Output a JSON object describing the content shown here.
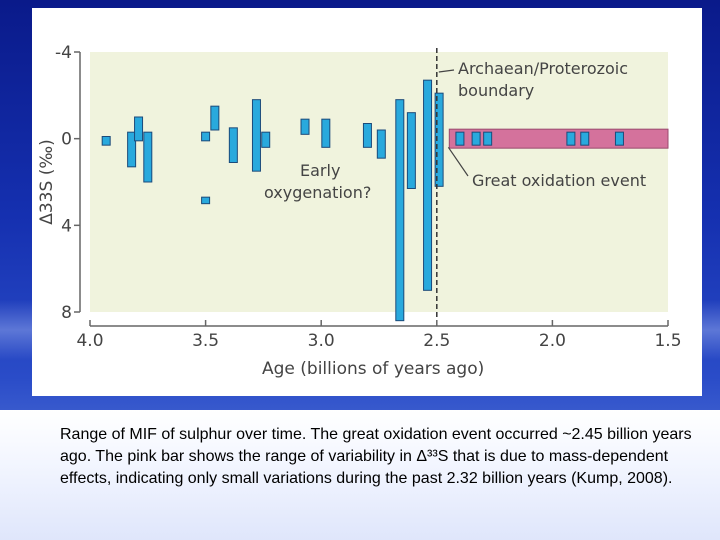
{
  "chart_data": {
    "type": "bar",
    "xlabel": "Age (billions of years ago)",
    "ylabel": "Δ33S (‰)",
    "xlim": [
      4.0,
      1.5
    ],
    "ylim": [
      -4,
      8
    ],
    "x_ticks": [
      "4.0",
      "3.5",
      "3.0",
      "2.5",
      "2.0",
      "1.5"
    ],
    "y_ticks": [
      "-4",
      "0",
      "4",
      "8"
    ],
    "grid": false,
    "ranges": [
      {
        "age": 3.93,
        "min": -0.1,
        "max": 0.3
      },
      {
        "age": 3.82,
        "min": -0.3,
        "max": 1.3
      },
      {
        "age": 3.79,
        "min": -1.0,
        "max": 0.1
      },
      {
        "age": 3.75,
        "min": -0.3,
        "max": 2.0
      },
      {
        "age": 3.5,
        "min": -0.3,
        "max": 0.1
      },
      {
        "age": 3.5,
        "min": 2.7,
        "max": 3.0
      },
      {
        "age": 3.46,
        "min": -1.5,
        "max": -0.4
      },
      {
        "age": 3.38,
        "min": -0.5,
        "max": 1.1
      },
      {
        "age": 3.28,
        "min": -1.8,
        "max": 1.5
      },
      {
        "age": 3.24,
        "min": -0.3,
        "max": 0.4
      },
      {
        "age": 3.07,
        "min": -0.9,
        "max": -0.2
      },
      {
        "age": 2.98,
        "min": -0.9,
        "max": 0.4
      },
      {
        "age": 2.8,
        "min": -0.7,
        "max": 0.4
      },
      {
        "age": 2.74,
        "min": -0.4,
        "max": 0.9
      },
      {
        "age": 2.66,
        "min": -1.8,
        "max": 8.4
      },
      {
        "age": 2.61,
        "min": -1.2,
        "max": 2.3
      },
      {
        "age": 2.54,
        "min": -2.7,
        "max": 7.0
      },
      {
        "age": 2.49,
        "min": -2.1,
        "max": 2.2
      },
      {
        "age": 2.4,
        "min": -0.3,
        "max": 0.3
      },
      {
        "age": 2.33,
        "min": -0.3,
        "max": 0.3
      },
      {
        "age": 2.28,
        "min": -0.3,
        "max": 0.3
      },
      {
        "age": 1.92,
        "min": -0.3,
        "max": 0.3
      },
      {
        "age": 1.86,
        "min": -0.3,
        "max": 0.3
      },
      {
        "age": 1.71,
        "min": -0.3,
        "max": 0.3
      }
    ],
    "mass_dependent_band": {
      "age_from": 2.42,
      "age_to": 1.5,
      "min": -0.3,
      "max": 0.3
    },
    "boundary_age": 2.5,
    "annotations": {
      "boundary": [
        "Archaean/Proterozoic",
        "boundary"
      ],
      "early_oxygenation": [
        "Early",
        "oxygenation?"
      ],
      "great_oxidation": "Great oxidation event"
    }
  },
  "caption": "Range of MIF of sulphur over time. The great oxidation event occurred ~2.45 billion years ago. The pink bar shows the range of variability in Δ³³S that is due to mass-dependent effects, indicating only small variations during the past 2.32 billion years (Kump, 2008).",
  "colors": {
    "bar_fill": "#29a9dd",
    "bar_stroke": "#1b4a7a",
    "band_fill": "#d4729c",
    "plot_area": "#f0f3dd"
  }
}
